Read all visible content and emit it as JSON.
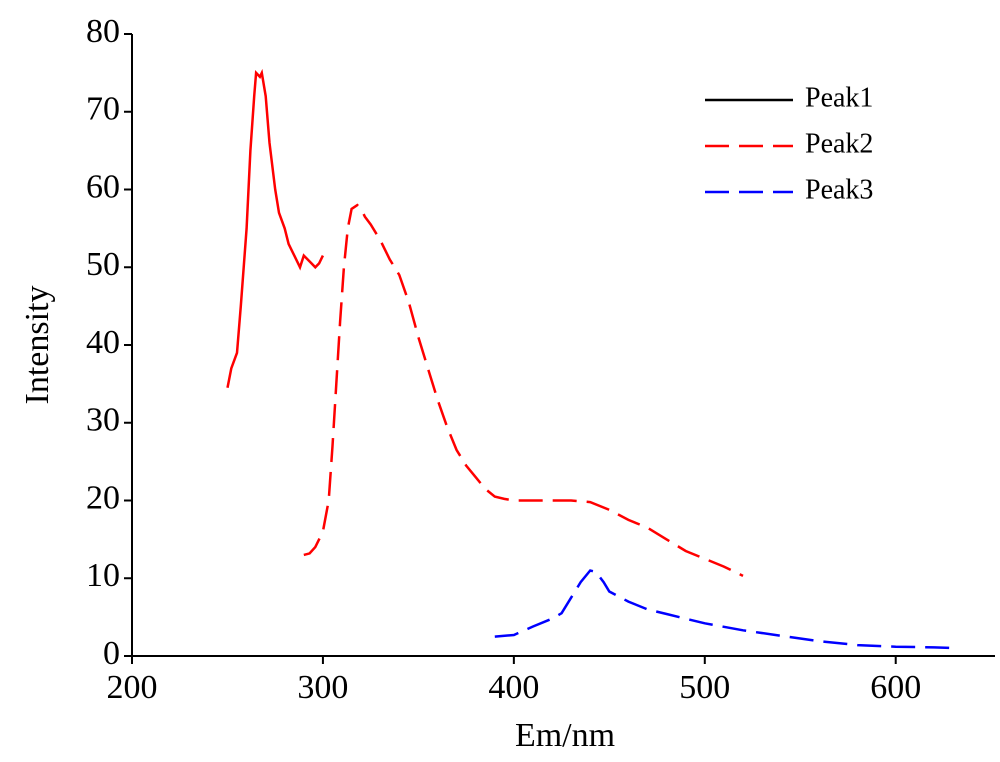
{
  "chart_data": {
    "type": "line",
    "x_label": "Em/nm",
    "y_label": "Intensity",
    "xlim": [
      200,
      652
    ],
    "xticks": [
      200,
      300,
      400,
      500,
      600
    ],
    "ylim": [
      0,
      80
    ],
    "yticks": [
      0,
      10,
      20,
      30,
      40,
      50,
      60,
      70,
      80
    ],
    "legend": "upper right",
    "series": [
      {
        "name": "Peak1",
        "color": "#ff0000",
        "legend_color": "#000000",
        "style": "solid",
        "x": [
          250,
          252,
          255,
          257,
          260,
          262,
          264,
          265,
          267,
          268,
          270,
          272,
          275,
          277,
          280,
          282,
          285,
          288,
          290,
          292,
          294,
          296,
          298,
          300
        ],
        "values": [
          34.5,
          37,
          39,
          45,
          55,
          65,
          72,
          75,
          74.5,
          75,
          72,
          66,
          60,
          57,
          55,
          53,
          51.5,
          50,
          51.5,
          51,
          50.5,
          50,
          50.5,
          51.5
        ]
      },
      {
        "name": "Peak2",
        "color": "#ff0000",
        "legend_color": "#ff0000",
        "style": "dashed",
        "x": [
          290,
          293,
          296,
          300,
          303,
          305,
          307,
          309,
          311,
          313,
          315,
          318,
          320,
          322,
          325,
          330,
          335,
          340,
          345,
          350,
          355,
          360,
          365,
          370,
          375,
          380,
          385,
          390,
          395,
          400,
          410,
          420,
          430,
          440,
          450,
          460,
          470,
          480,
          490,
          500,
          510,
          520
        ],
        "values": [
          13,
          13.2,
          14,
          16,
          20,
          27,
          35,
          43,
          50,
          55,
          57.5,
          58,
          57.5,
          56.5,
          55.5,
          53.5,
          51,
          49,
          45.5,
          41,
          37,
          33,
          29.5,
          26.5,
          24.5,
          23,
          21.5,
          20.5,
          20.2,
          20,
          20,
          20,
          20,
          19.8,
          18.8,
          17.5,
          16.5,
          15,
          13.5,
          12.5,
          11.5,
          10.3
        ]
      },
      {
        "name": "Peak3",
        "color": "#0000ff",
        "legend_color": "#0000ff",
        "style": "dashed",
        "x": [
          390,
          400,
          410,
          420,
          425,
          430,
          435,
          440,
          443,
          447,
          450,
          460,
          470,
          480,
          490,
          500,
          520,
          540,
          560,
          580,
          600,
          620,
          632
        ],
        "values": [
          2.5,
          2.7,
          3.8,
          4.8,
          5.5,
          7.5,
          9.5,
          11,
          10.8,
          9.5,
          8.3,
          7,
          6,
          5.4,
          4.8,
          4.2,
          3.3,
          2.6,
          1.9,
          1.4,
          1.2,
          1.1,
          1.0
        ]
      }
    ]
  }
}
